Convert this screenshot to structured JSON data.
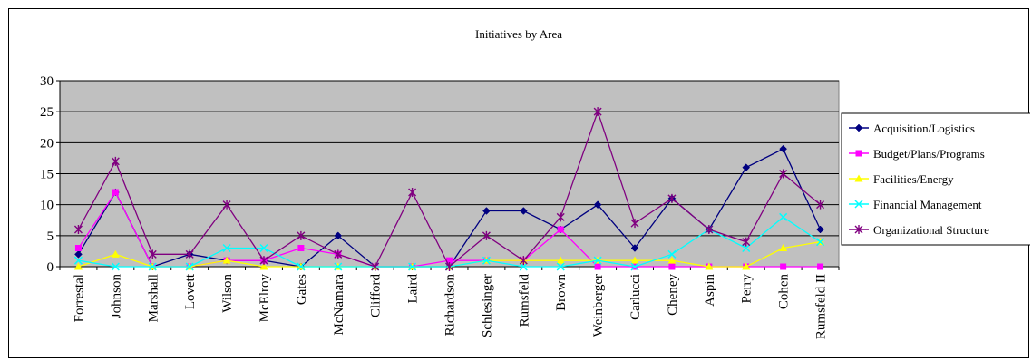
{
  "chart_data": {
    "type": "line",
    "title": "Initiatives by Area",
    "xlabel": "",
    "ylabel": "",
    "ylim": [
      0,
      30
    ],
    "yticks": [
      0,
      5,
      10,
      15,
      20,
      25,
      30
    ],
    "grid": true,
    "legend_position": "right",
    "plot_background": "#c0c0c0",
    "categories": [
      "Forrestal",
      "Johnson",
      "Marshall",
      "Lovett",
      "Wilson",
      "McElroy",
      "Gates",
      "McNamara",
      "Clifford",
      "Laird",
      "Richardson",
      "Schlesinger",
      "Rumsfeld",
      "Brown",
      "Weinberger",
      "Carlucci",
      "Cheney",
      "Aspin",
      "Perry",
      "Cohen",
      "Rumsfeld II"
    ],
    "series": [
      {
        "name": "Acquisition/Logistics",
        "color": "#000080",
        "marker": "diamond",
        "values": [
          2,
          12,
          0,
          2,
          1,
          1,
          0,
          5,
          0,
          0,
          0,
          9,
          9,
          6,
          10,
          3,
          11,
          6,
          16,
          19,
          6
        ]
      },
      {
        "name": "Budget/Plans/Programs",
        "color": "#ff00ff",
        "marker": "square",
        "values": [
          3,
          12,
          0,
          0,
          1,
          1,
          3,
          2,
          0,
          0,
          1,
          1,
          1,
          6,
          0,
          0,
          0,
          0,
          0,
          0,
          0
        ]
      },
      {
        "name": "Facilities/Energy",
        "color": "#ffff00",
        "marker": "triangle",
        "values": [
          0,
          2,
          0,
          0,
          1,
          0,
          0,
          0,
          0,
          0,
          0,
          1,
          1,
          1,
          1,
          1,
          1,
          0,
          0,
          3,
          4
        ]
      },
      {
        "name": "Financial Management",
        "color": "#00ffff",
        "marker": "x",
        "values": [
          1,
          0,
          0,
          0,
          3,
          3,
          0,
          0,
          0,
          0,
          0,
          1,
          0,
          0,
          1,
          0,
          2,
          6,
          3,
          8,
          4
        ]
      },
      {
        "name": "Organizational Structure",
        "color": "#800080",
        "marker": "star",
        "values": [
          6,
          17,
          2,
          2,
          10,
          1,
          5,
          2,
          0,
          12,
          0,
          5,
          1,
          8,
          25,
          7,
          11,
          6,
          4,
          15,
          10
        ]
      }
    ]
  }
}
